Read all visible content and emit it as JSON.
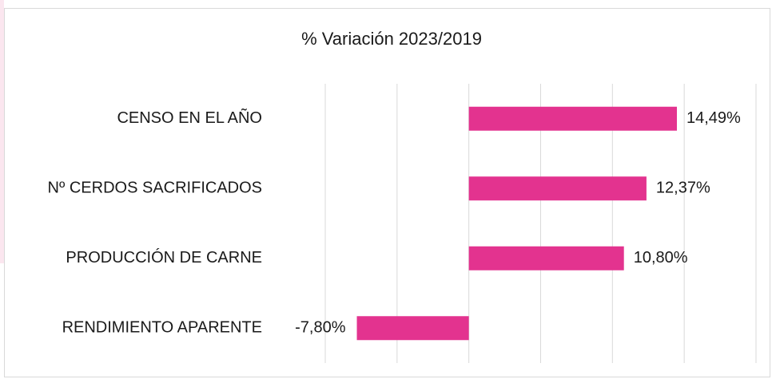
{
  "chart_data": {
    "type": "barh",
    "title": "% Variación 2023/2019",
    "categories": [
      "CENSO EN EL AÑO",
      "Nº CERDOS SACRIFICADOS",
      "PRODUCCIÓN DE CARNE",
      "RENDIMIENTO APARENTE"
    ],
    "values": [
      14.49,
      12.37,
      10.8,
      -7.8
    ],
    "value_labels": [
      "14,49%",
      "12,37%",
      "10,80%",
      "-7,80%"
    ],
    "color": "#e3338f",
    "xlim": [
      -10,
      20
    ],
    "xticks": [
      -10,
      -5,
      0,
      5,
      10,
      15,
      20
    ],
    "grid": true
  }
}
